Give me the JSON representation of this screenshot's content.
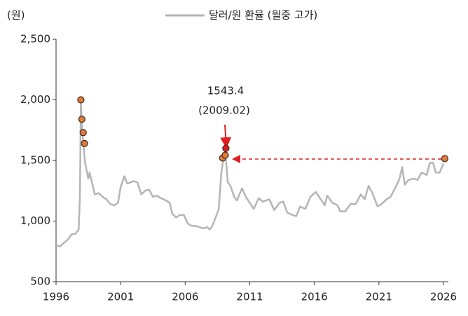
{
  "chart_data": {
    "type": "line",
    "unit_label": "(원)",
    "xlim": [
      1996,
      2026
    ],
    "xticks": [
      1996,
      2001,
      2006,
      2011,
      2016,
      2021,
      2026
    ],
    "ylim": [
      500,
      2500
    ],
    "yticks": [
      {
        "value": 2500,
        "label": "2,500"
      },
      {
        "value": 2000,
        "label": "2,000"
      },
      {
        "value": 1500,
        "label": "1,500"
      },
      {
        "value": 1000,
        "label": "1,000"
      },
      500
    ],
    "series": [
      {
        "name": "달러/원 환율 (월중 고가)",
        "color": "#b5b5b5",
        "x": [
          1996.0,
          1996.3,
          1996.6,
          1996.9,
          1997.2,
          1997.5,
          1997.75,
          1997.85,
          1997.92,
          1998.0,
          1998.1,
          1998.25,
          1998.4,
          1998.5,
          1998.6,
          1998.8,
          1999.0,
          1999.3,
          1999.6,
          1999.9,
          2000.2,
          2000.5,
          2000.8,
          2001.0,
          2001.3,
          2001.5,
          2001.8,
          2002.0,
          2002.3,
          2002.6,
          2002.9,
          2003.2,
          2003.5,
          2003.8,
          2004.1,
          2004.5,
          2004.8,
          2005.0,
          2005.3,
          2005.6,
          2005.9,
          2006.2,
          2006.5,
          2006.8,
          2007.1,
          2007.4,
          2007.7,
          2007.9,
          2008.1,
          2008.4,
          2008.6,
          2008.8,
          2008.95,
          2009.1,
          2009.2,
          2009.3,
          2009.5,
          2009.8,
          2010.0,
          2010.4,
          2010.7,
          2011.0,
          2011.3,
          2011.7,
          2012.0,
          2012.5,
          2012.9,
          2013.3,
          2013.6,
          2013.9,
          2014.3,
          2014.6,
          2014.9,
          2015.3,
          2015.7,
          2016.1,
          2016.5,
          2016.8,
          2017.0,
          2017.4,
          2017.8,
          2018.0,
          2018.4,
          2018.8,
          2019.2,
          2019.6,
          2019.9,
          2020.2,
          2020.5,
          2020.9,
          2021.2,
          2021.6,
          2021.9,
          2022.3,
          2022.6,
          2022.8,
          2023.0,
          2023.3,
          2023.7,
          2024.0,
          2024.3,
          2024.7,
          2024.95,
          2025.2,
          2025.4,
          2025.7,
          2026.0
        ],
        "values": [
          800,
          790,
          820,
          845,
          890,
          895,
          930,
          1200,
          1990,
          1800,
          1650,
          1480,
          1400,
          1350,
          1400,
          1310,
          1220,
          1230,
          1200,
          1180,
          1140,
          1130,
          1150,
          1280,
          1370,
          1310,
          1320,
          1330,
          1320,
          1220,
          1250,
          1260,
          1200,
          1210,
          1190,
          1170,
          1150,
          1060,
          1030,
          1050,
          1050,
          980,
          960,
          960,
          950,
          940,
          950,
          930,
          960,
          1040,
          1100,
          1400,
          1510,
          1560,
          1450,
          1320,
          1290,
          1200,
          1170,
          1270,
          1200,
          1150,
          1100,
          1190,
          1160,
          1180,
          1090,
          1150,
          1160,
          1070,
          1050,
          1040,
          1120,
          1100,
          1200,
          1240,
          1180,
          1130,
          1210,
          1150,
          1130,
          1080,
          1080,
          1140,
          1140,
          1220,
          1180,
          1290,
          1230,
          1120,
          1140,
          1180,
          1200,
          1280,
          1350,
          1445,
          1300,
          1340,
          1350,
          1340,
          1400,
          1380,
          1480,
          1480,
          1400,
          1400,
          1475
        ]
      }
    ],
    "points": {
      "x": [
        1997.92,
        1998.0,
        1998.1,
        1998.2,
        2008.9,
        2009.1,
        2009.15,
        2026.1
      ],
      "values": [
        2000,
        1840,
        1730,
        1640,
        1520,
        1543.4,
        1600,
        1515
      ],
      "colors": [
        "#e07b39",
        "#e07b39",
        "#e07b39",
        "#e07b39",
        "#e07b39",
        "#e07b39",
        "#e02020",
        "#e07b39"
      ]
    },
    "annotation": {
      "value": "1543.4",
      "date": "(2009.02)"
    }
  }
}
